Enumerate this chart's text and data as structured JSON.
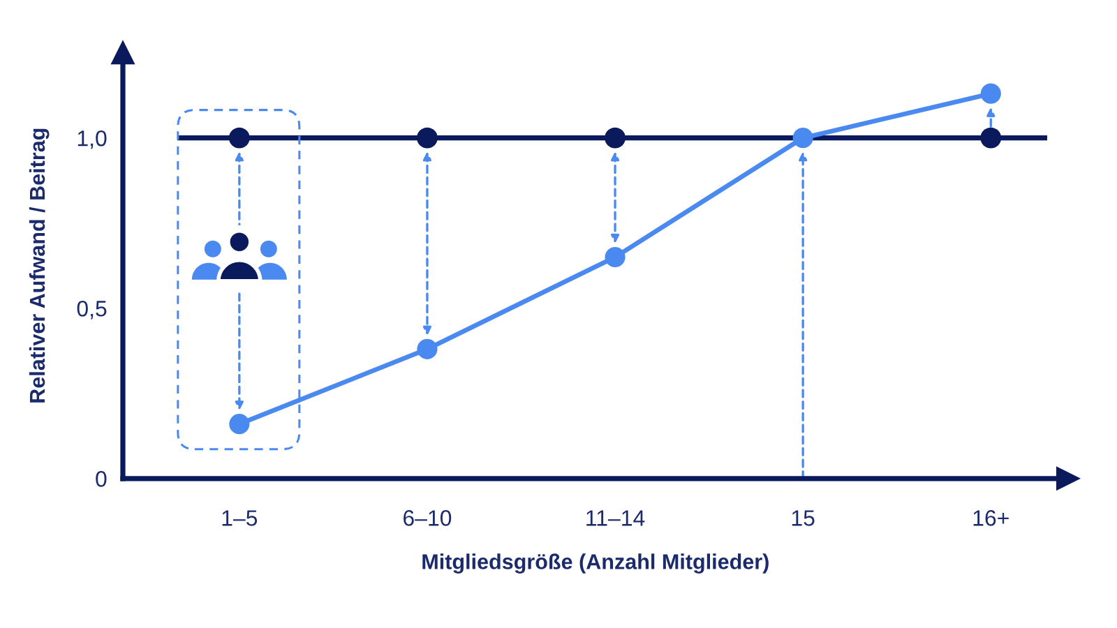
{
  "chart_data": {
    "type": "line",
    "xlabel": "Mitgliedsgröße (Anzahl Mitglieder)",
    "ylabel": "Relativer Aufwand / Beitrag",
    "categories": [
      "1–5",
      "6–10",
      "11–14",
      "15",
      "16+"
    ],
    "series": [
      {
        "type": "scatter",
        "color": "#0b1a5c",
        "values": [
          1.0,
          1.0,
          1.0,
          null,
          1.0
        ]
      },
      {
        "color": "#4a8af0",
        "values": [
          0.16,
          0.38,
          0.65,
          1.0,
          1.13
        ]
      }
    ],
    "ylim": [
      0,
      1.25
    ],
    "yticks": [
      0,
      {
        "value": 0.5,
        "label": "0,5"
      },
      {
        "value": 1.0,
        "label": "1,0"
      }
    ],
    "ref_lines": [
      {
        "axis": "y",
        "value": 1.0,
        "color": "#0b1a5c"
      }
    ],
    "grid": false,
    "legend": false,
    "marker": "circle",
    "line_style": "solid"
  }
}
